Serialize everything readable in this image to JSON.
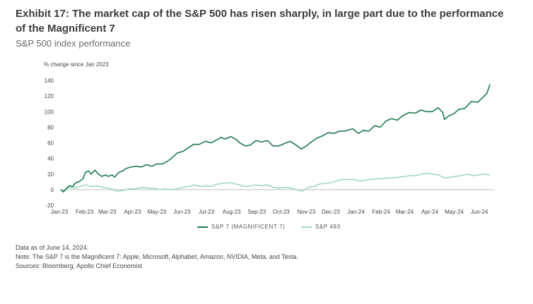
{
  "chart_data": {
    "type": "line",
    "title": "Exhibit 17: The market cap of the S&P 500 has risen sharply, in large part due to the performance of the Magnificent 7",
    "subtitle": "S&P 500 index performance",
    "ylabel": "% change since Jan 2023",
    "xlabel": "",
    "ylim": [
      -20,
      140
    ],
    "yticks": [
      -20,
      0,
      20,
      40,
      60,
      80,
      100,
      120,
      140
    ],
    "xlim": [
      "2023-01-01",
      "2024-06-20"
    ],
    "xticks": [
      {
        "date": "2023-01-01",
        "label": "Jan-23"
      },
      {
        "date": "2023-02-01",
        "label": "Feb-23"
      },
      {
        "date": "2023-03-01",
        "label": "Mar-23"
      },
      {
        "date": "2023-04-01",
        "label": "Apr-23"
      },
      {
        "date": "2023-05-01",
        "label": "May-23"
      },
      {
        "date": "2023-06-01",
        "label": "Jun-23"
      },
      {
        "date": "2023-07-01",
        "label": "Jul-23"
      },
      {
        "date": "2023-08-01",
        "label": "Aug-23"
      },
      {
        "date": "2023-09-01",
        "label": "Sep-23"
      },
      {
        "date": "2023-10-01",
        "label": "Oct-23"
      },
      {
        "date": "2023-11-01",
        "label": "Nov-23"
      },
      {
        "date": "2023-12-01",
        "label": "Dec-23"
      },
      {
        "date": "2024-01-01",
        "label": "Jan-24"
      },
      {
        "date": "2024-02-01",
        "label": "Feb-24"
      },
      {
        "date": "2024-03-01",
        "label": "Mar-24"
      },
      {
        "date": "2024-04-01",
        "label": "Apr-24"
      },
      {
        "date": "2024-05-01",
        "label": "May-24"
      },
      {
        "date": "2024-06-01",
        "label": "Jun-24"
      }
    ],
    "grid": false,
    "legend_position": "bottom-center",
    "series": [
      {
        "name": "S&P 7 (MAGNIFICENT 7)",
        "color": "#1e7a4f",
        "points": [
          [
            "2023-01-03",
            0
          ],
          [
            "2023-01-06",
            -3
          ],
          [
            "2023-01-10",
            2
          ],
          [
            "2023-01-13",
            5
          ],
          [
            "2023-01-18",
            4
          ],
          [
            "2023-01-20",
            8
          ],
          [
            "2023-01-25",
            10
          ],
          [
            "2023-01-30",
            14
          ],
          [
            "2023-02-02",
            22
          ],
          [
            "2023-02-06",
            24
          ],
          [
            "2023-02-09",
            20
          ],
          [
            "2023-02-14",
            25
          ],
          [
            "2023-02-17",
            21
          ],
          [
            "2023-02-22",
            17
          ],
          [
            "2023-02-27",
            19
          ],
          [
            "2023-03-02",
            17
          ],
          [
            "2023-03-07",
            19
          ],
          [
            "2023-03-10",
            16
          ],
          [
            "2023-03-15",
            22
          ],
          [
            "2023-03-20",
            24
          ],
          [
            "2023-03-24",
            27
          ],
          [
            "2023-03-30",
            29
          ],
          [
            "2023-04-05",
            30
          ],
          [
            "2023-04-12",
            29
          ],
          [
            "2023-04-18",
            32
          ],
          [
            "2023-04-25",
            30
          ],
          [
            "2023-05-01",
            33
          ],
          [
            "2023-05-08",
            33
          ],
          [
            "2023-05-15",
            37
          ],
          [
            "2023-05-19",
            40
          ],
          [
            "2023-05-26",
            47
          ],
          [
            "2023-06-02",
            49
          ],
          [
            "2023-06-08",
            53
          ],
          [
            "2023-06-15",
            58
          ],
          [
            "2023-06-22",
            58
          ],
          [
            "2023-06-30",
            62
          ],
          [
            "2023-07-07",
            60
          ],
          [
            "2023-07-14",
            64
          ],
          [
            "2023-07-19",
            67
          ],
          [
            "2023-07-24",
            65
          ],
          [
            "2023-07-31",
            68
          ],
          [
            "2023-08-07",
            64
          ],
          [
            "2023-08-11",
            60
          ],
          [
            "2023-08-18",
            56
          ],
          [
            "2023-08-24",
            57
          ],
          [
            "2023-08-31",
            63
          ],
          [
            "2023-09-07",
            61
          ],
          [
            "2023-09-14",
            63
          ],
          [
            "2023-09-21",
            56
          ],
          [
            "2023-09-28",
            56
          ],
          [
            "2023-10-05",
            59
          ],
          [
            "2023-10-12",
            62
          ],
          [
            "2023-10-18",
            58
          ],
          [
            "2023-10-26",
            52
          ],
          [
            "2023-11-01",
            56
          ],
          [
            "2023-11-07",
            61
          ],
          [
            "2023-11-14",
            66
          ],
          [
            "2023-11-21",
            69
          ],
          [
            "2023-11-28",
            73
          ],
          [
            "2023-12-05",
            72
          ],
          [
            "2023-12-12",
            75
          ],
          [
            "2023-12-18",
            75
          ],
          [
            "2023-12-28",
            78
          ],
          [
            "2024-01-04",
            72
          ],
          [
            "2024-01-10",
            76
          ],
          [
            "2024-01-17",
            75
          ],
          [
            "2024-01-24",
            82
          ],
          [
            "2024-01-31",
            80
          ],
          [
            "2024-02-07",
            88
          ],
          [
            "2024-02-14",
            91
          ],
          [
            "2024-02-21",
            89
          ],
          [
            "2024-02-28",
            95
          ],
          [
            "2024-03-07",
            99
          ],
          [
            "2024-03-14",
            98
          ],
          [
            "2024-03-21",
            102
          ],
          [
            "2024-03-28",
            100
          ],
          [
            "2024-04-04",
            100
          ],
          [
            "2024-04-11",
            105
          ],
          [
            "2024-04-17",
            99
          ],
          [
            "2024-04-19",
            90
          ],
          [
            "2024-04-25",
            95
          ],
          [
            "2024-04-30",
            97
          ],
          [
            "2024-05-07",
            103
          ],
          [
            "2024-05-14",
            104
          ],
          [
            "2024-05-22",
            113
          ],
          [
            "2024-05-30",
            112
          ],
          [
            "2024-06-05",
            118
          ],
          [
            "2024-06-10",
            123
          ],
          [
            "2024-06-14",
            135
          ]
        ]
      },
      {
        "name": "S&P 493",
        "color": "#9fd8bd",
        "points": [
          [
            "2023-01-03",
            0
          ],
          [
            "2023-01-06",
            -2
          ],
          [
            "2023-01-10",
            1
          ],
          [
            "2023-01-13",
            3
          ],
          [
            "2023-01-20",
            2
          ],
          [
            "2023-01-27",
            4
          ],
          [
            "2023-02-02",
            6
          ],
          [
            "2023-02-09",
            4
          ],
          [
            "2023-02-16",
            5
          ],
          [
            "2023-02-23",
            3
          ],
          [
            "2023-03-02",
            2
          ],
          [
            "2023-03-09",
            0
          ],
          [
            "2023-03-13",
            -2
          ],
          [
            "2023-03-20",
            -1
          ],
          [
            "2023-03-28",
            1
          ],
          [
            "2023-04-05",
            1
          ],
          [
            "2023-04-13",
            3
          ],
          [
            "2023-04-20",
            2
          ],
          [
            "2023-04-27",
            2
          ],
          [
            "2023-05-04",
            0
          ],
          [
            "2023-05-11",
            1
          ],
          [
            "2023-05-18",
            0
          ],
          [
            "2023-05-26",
            1
          ],
          [
            "2023-06-02",
            3
          ],
          [
            "2023-06-09",
            4
          ],
          [
            "2023-06-16",
            6
          ],
          [
            "2023-06-23",
            4
          ],
          [
            "2023-06-30",
            5
          ],
          [
            "2023-07-07",
            4
          ],
          [
            "2023-07-14",
            7
          ],
          [
            "2023-07-21",
            8
          ],
          [
            "2023-07-31",
            9
          ],
          [
            "2023-08-07",
            7
          ],
          [
            "2023-08-14",
            5
          ],
          [
            "2023-08-21",
            4
          ],
          [
            "2023-08-31",
            6
          ],
          [
            "2023-09-07",
            5
          ],
          [
            "2023-09-14",
            6
          ],
          [
            "2023-09-21",
            3
          ],
          [
            "2023-09-29",
            2
          ],
          [
            "2023-10-06",
            3
          ],
          [
            "2023-10-13",
            2
          ],
          [
            "2023-10-20",
            0
          ],
          [
            "2023-10-27",
            -2
          ],
          [
            "2023-11-03",
            3
          ],
          [
            "2023-11-10",
            4
          ],
          [
            "2023-11-17",
            7
          ],
          [
            "2023-11-24",
            8
          ],
          [
            "2023-12-01",
            9
          ],
          [
            "2023-12-08",
            11
          ],
          [
            "2023-12-15",
            13
          ],
          [
            "2023-12-29",
            13
          ],
          [
            "2024-01-05",
            11
          ],
          [
            "2024-01-12",
            12
          ],
          [
            "2024-01-19",
            13
          ],
          [
            "2024-01-26",
            14
          ],
          [
            "2024-02-02",
            14
          ],
          [
            "2024-02-09",
            15
          ],
          [
            "2024-02-16",
            15
          ],
          [
            "2024-02-23",
            16
          ],
          [
            "2024-03-01",
            17
          ],
          [
            "2024-03-08",
            18
          ],
          [
            "2024-03-15",
            18
          ],
          [
            "2024-03-22",
            20
          ],
          [
            "2024-03-28",
            21
          ],
          [
            "2024-04-04",
            20
          ],
          [
            "2024-04-12",
            19
          ],
          [
            "2024-04-19",
            15
          ],
          [
            "2024-04-26",
            16
          ],
          [
            "2024-05-03",
            17
          ],
          [
            "2024-05-10",
            18
          ],
          [
            "2024-05-17",
            20
          ],
          [
            "2024-05-24",
            18
          ],
          [
            "2024-05-31",
            19
          ],
          [
            "2024-06-07",
            20
          ],
          [
            "2024-06-14",
            19
          ]
        ]
      }
    ]
  },
  "notes": [
    "Data as of June 14, 2024.",
    "Note: The S&P 7 is the Magnificent 7: Apple, Microsoft, Alphabet, Amazon, NVIDIA, Meta, and Tesla.",
    "Sources: Bloomberg, Apollo Chief Economist"
  ]
}
